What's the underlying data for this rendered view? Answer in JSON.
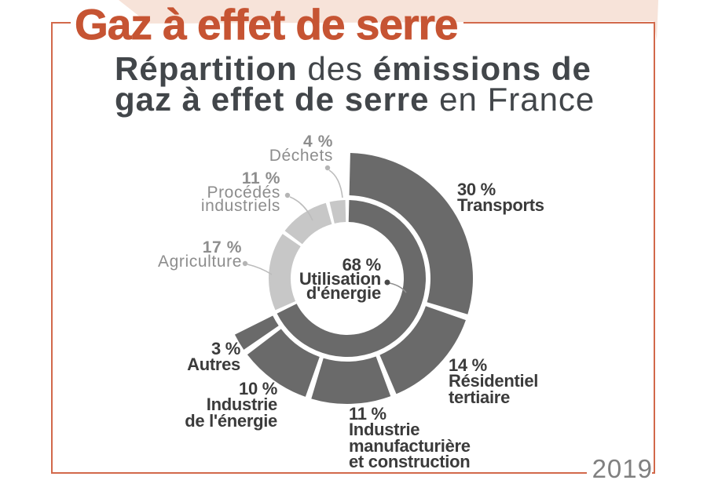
{
  "header": {
    "category_title": "Gaz à effet de serre",
    "heading_parts": [
      {
        "text": "Répartition",
        "bold": true
      },
      {
        "text": " des ",
        "bold": false
      },
      {
        "text": "émissions de\ngaz à effet de serre",
        "bold": true
      },
      {
        "text": " en France",
        "bold": false
      }
    ],
    "year": "2019"
  },
  "colors": {
    "accent_orange": "#c65433",
    "frame_orange": "#d2694b",
    "peach_band": "#f7e3d9",
    "dark_segment": "#6a6a6a",
    "light_segment": "#c7c7c7",
    "dark_text": "#3b3b3b",
    "gray_text": "#8d8d8d",
    "heading_text": "#42464a",
    "leader_light": "#bcbcbc",
    "leader_dark": "#8f8f8f",
    "dot_dark": "#4a4a4a",
    "dot_light": "#b5b5b5",
    "year_text": "#808080"
  },
  "chart_data": {
    "type": "donut",
    "title": "Répartition des émissions de gaz à effet de serre en France",
    "year": "2019",
    "units": "%",
    "center_label": {
      "value": "68 %",
      "lines": [
        "Utilisation",
        "d'énergie"
      ]
    },
    "center_total_pct": 68,
    "segments": [
      {
        "id": "transports",
        "label": "Transports",
        "pct": 30,
        "group": "energie"
      },
      {
        "id": "residentiel",
        "label": "Résidentiel tertiaire",
        "pct": 14,
        "group": "energie"
      },
      {
        "id": "manufacture",
        "label": "Industrie manufacturière et construction",
        "pct": 11,
        "group": "energie"
      },
      {
        "id": "energie",
        "label": "Industrie de l'énergie",
        "pct": 10,
        "group": "energie"
      },
      {
        "id": "autres",
        "label": "Autres",
        "pct": 3,
        "group": "energie"
      },
      {
        "id": "agriculture",
        "label": "Agriculture",
        "pct": 17,
        "group": "hors_energie"
      },
      {
        "id": "procedes",
        "label": "Procédés industriels",
        "pct": 11,
        "group": "hors_energie"
      },
      {
        "id": "dechets",
        "label": "Déchets",
        "pct": 4,
        "group": "hors_energie"
      }
    ],
    "labels": [
      {
        "id": "transports",
        "lines": [
          "30 %",
          "Transports"
        ]
      },
      {
        "id": "residentiel",
        "lines": [
          "14 %",
          "Résidentiel",
          "tertiaire"
        ]
      },
      {
        "id": "manufacture",
        "lines": [
          "11 %",
          "Industrie",
          "manufacturière",
          "et construction"
        ]
      },
      {
        "id": "energie",
        "lines": [
          "10 %",
          "Industrie",
          "de l'énergie"
        ]
      },
      {
        "id": "autres",
        "lines": [
          "3 %",
          "Autres"
        ]
      },
      {
        "id": "agriculture",
        "lines": [
          "17 %",
          "Agriculture"
        ]
      },
      {
        "id": "procedes",
        "lines": [
          "11 %",
          "Procédés",
          "industriels"
        ]
      },
      {
        "id": "dechets",
        "lines": [
          "4 %",
          "Déchets"
        ]
      }
    ]
  }
}
